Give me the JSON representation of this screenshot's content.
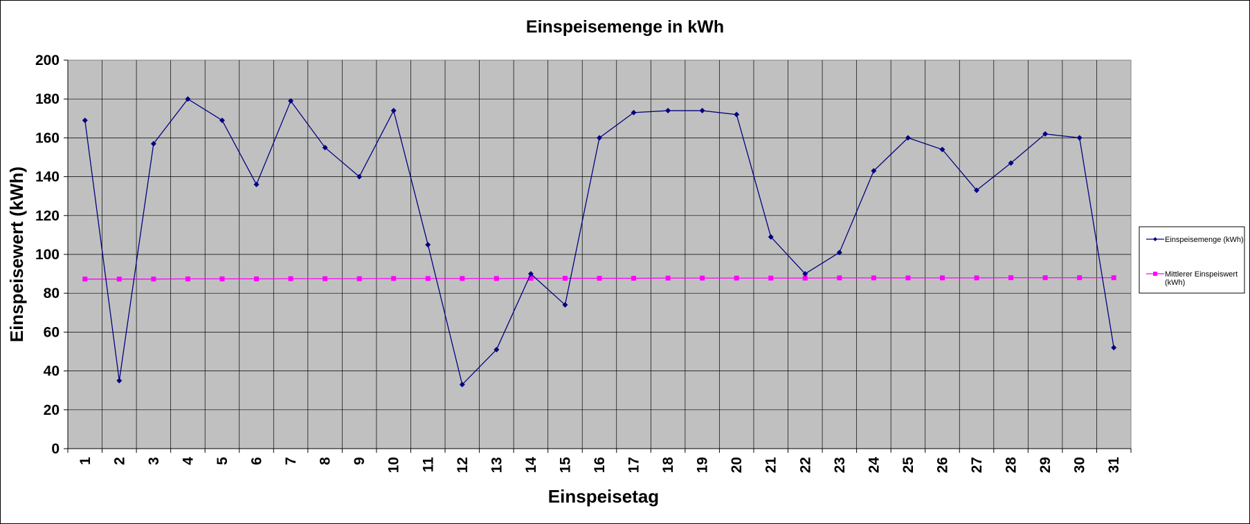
{
  "chart_data": {
    "type": "line",
    "title": "Einspeisemenge in kWh",
    "xlabel": "Einspeisetag",
    "ylabel": "Einspeisewert  (kWh)",
    "ylim": [
      0,
      200
    ],
    "yticks": [
      0,
      20,
      40,
      60,
      80,
      100,
      120,
      140,
      160,
      180,
      200
    ],
    "grid": true,
    "legend_position": "right",
    "plot_background": "#c0c0c0",
    "categories": [
      "1",
      "2",
      "3",
      "4",
      "5",
      "6",
      "7",
      "8",
      "9",
      "10",
      "11",
      "12",
      "13",
      "14",
      "15",
      "16",
      "17",
      "18",
      "19",
      "20",
      "21",
      "22",
      "23",
      "24",
      "25",
      "26",
      "27",
      "28",
      "29",
      "30",
      "31"
    ],
    "series": [
      {
        "name": "Einspeisemenge (kWh)",
        "legend_lines": [
          "Einspeisemenge (kWh)"
        ],
        "color": "#000080",
        "marker": "diamond",
        "values": [
          169,
          35,
          157,
          180,
          169,
          136,
          179,
          155,
          140,
          174,
          105,
          33,
          51,
          90,
          74,
          160,
          173,
          174,
          174,
          172,
          109,
          90,
          101,
          143,
          160,
          154,
          133,
          147,
          162,
          160,
          52
        ]
      },
      {
        "name": "Mittlerer Einspeiswert (kWh)",
        "legend_lines": [
          "Mittlerer Einspeiswert",
          "(kWh)"
        ],
        "color": "#ff00ff",
        "marker": "square",
        "values": [
          87.3,
          87.3,
          87.3,
          87.4,
          87.4,
          87.4,
          87.5,
          87.5,
          87.5,
          87.6,
          87.6,
          87.6,
          87.6,
          87.7,
          87.7,
          87.7,
          87.7,
          87.8,
          87.8,
          87.8,
          87.8,
          87.8,
          87.9,
          87.9,
          87.9,
          87.9,
          87.9,
          88.0,
          88.0,
          88.0,
          88.0
        ]
      }
    ]
  }
}
